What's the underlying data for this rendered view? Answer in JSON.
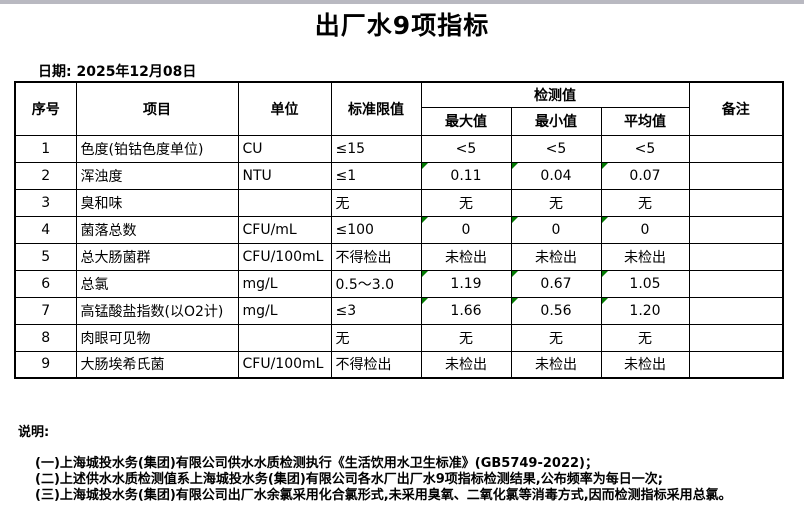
{
  "window": {
    "topbar_color": "#b9b9c1"
  },
  "title": "出厂水9项指标",
  "date_label": "日期: 2025年12月08日",
  "colors": {
    "marker_green": "#017a01",
    "border": "#000000"
  },
  "table": {
    "headers": {
      "index": "序号",
      "item": "项目",
      "unit": "单位",
      "limit": "标准限值",
      "detection_group": "检测值",
      "max": "最大值",
      "min": "最小值",
      "avg": "平均值",
      "remark": "备注"
    },
    "rows": [
      {
        "index": "1",
        "item": "色度(铂钴色度单位)",
        "unit": "CU",
        "limit": "≤15",
        "max": "<5",
        "min": "<5",
        "avg": "<5",
        "remark": "",
        "marker": false
      },
      {
        "index": "2",
        "item": "浑浊度",
        "unit": "NTU",
        "limit": "≤1",
        "max": "0.11",
        "min": "0.04",
        "avg": "0.07",
        "remark": "",
        "marker": true
      },
      {
        "index": "3",
        "item": "臭和味",
        "unit": "",
        "limit": "无",
        "max": "无",
        "min": "无",
        "avg": "无",
        "remark": "",
        "marker": false
      },
      {
        "index": "4",
        "item": "菌落总数",
        "unit": "CFU/mL",
        "limit": "≤100",
        "max": "0",
        "min": "0",
        "avg": "0",
        "remark": "",
        "marker": true
      },
      {
        "index": "5",
        "item": "总大肠菌群",
        "unit": "CFU/100mL",
        "limit": "不得检出",
        "max": "未检出",
        "min": "未检出",
        "avg": "未检出",
        "remark": "",
        "marker": false
      },
      {
        "index": "6",
        "item": "总氯",
        "unit": "mg/L",
        "limit": "0.5～3.0",
        "max": "1.19",
        "min": "0.67",
        "avg": "1.05",
        "remark": "",
        "marker": true
      },
      {
        "index": "7",
        "item": "高锰酸盐指数(以O2计)",
        "unit": "mg/L",
        "limit": "≤3",
        "max": "1.66",
        "min": "0.56",
        "avg": "1.20",
        "remark": "",
        "marker": true
      },
      {
        "index": "8",
        "item": "肉眼可见物",
        "unit": "",
        "limit": "无",
        "max": "无",
        "min": "无",
        "avg": "无",
        "remark": "",
        "marker": false
      },
      {
        "index": "9",
        "item": "大肠埃希氏菌",
        "unit": "CFU/100mL",
        "limit": "不得检出",
        "max": "未检出",
        "min": "未检出",
        "avg": "未检出",
        "remark": "",
        "marker": false
      }
    ]
  },
  "notes": {
    "heading": "说明:",
    "items": [
      "(一)上海城投水务(集团)有限公司供水水质检测执行《生活饮用水卫生标准》(GB5749-2022)；",
      "(二)上述供水水质检测值系上海城投水务(集团)有限公司各水厂出厂水9项指标检测结果,公布频率为每日一次;",
      "(三)上海城投水务(集团)有限公司出厂水余氯采用化合氯形式,未采用臭氧、二氧化氯等消毒方式,因而检测指标采用总氯。"
    ]
  }
}
